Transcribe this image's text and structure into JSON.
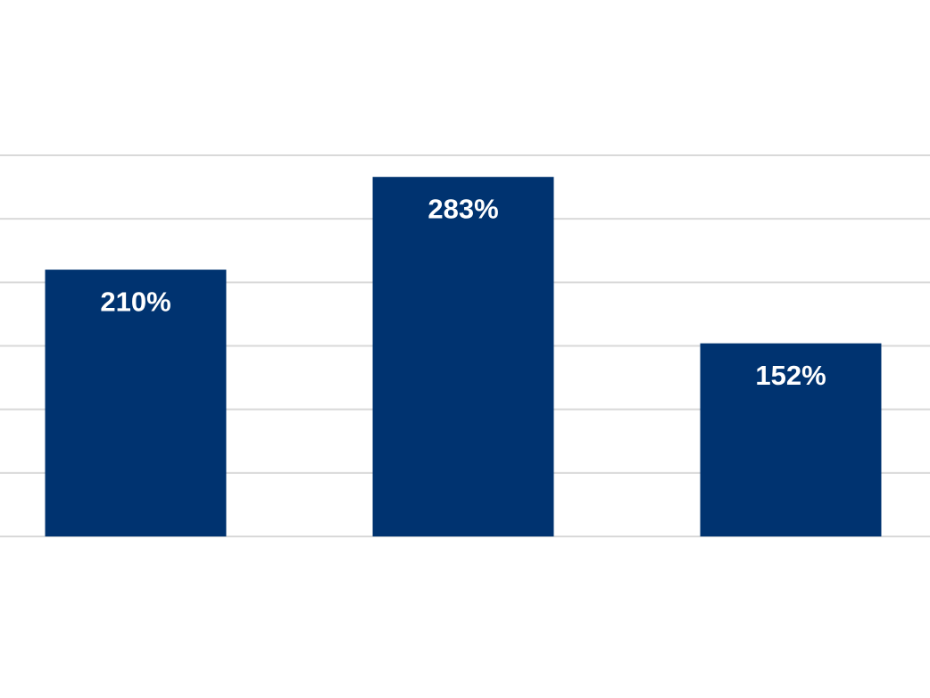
{
  "chart_data": {
    "type": "bar",
    "categories": [
      null,
      null,
      null
    ],
    "values": [
      210,
      283,
      152
    ],
    "value_labels": [
      "210%",
      "283%",
      "152%"
    ],
    "color": "#003370",
    "ylim": [
      0,
      300
    ],
    "yticks": [
      0,
      50,
      100,
      150,
      200,
      250,
      300
    ],
    "grid": true
  }
}
